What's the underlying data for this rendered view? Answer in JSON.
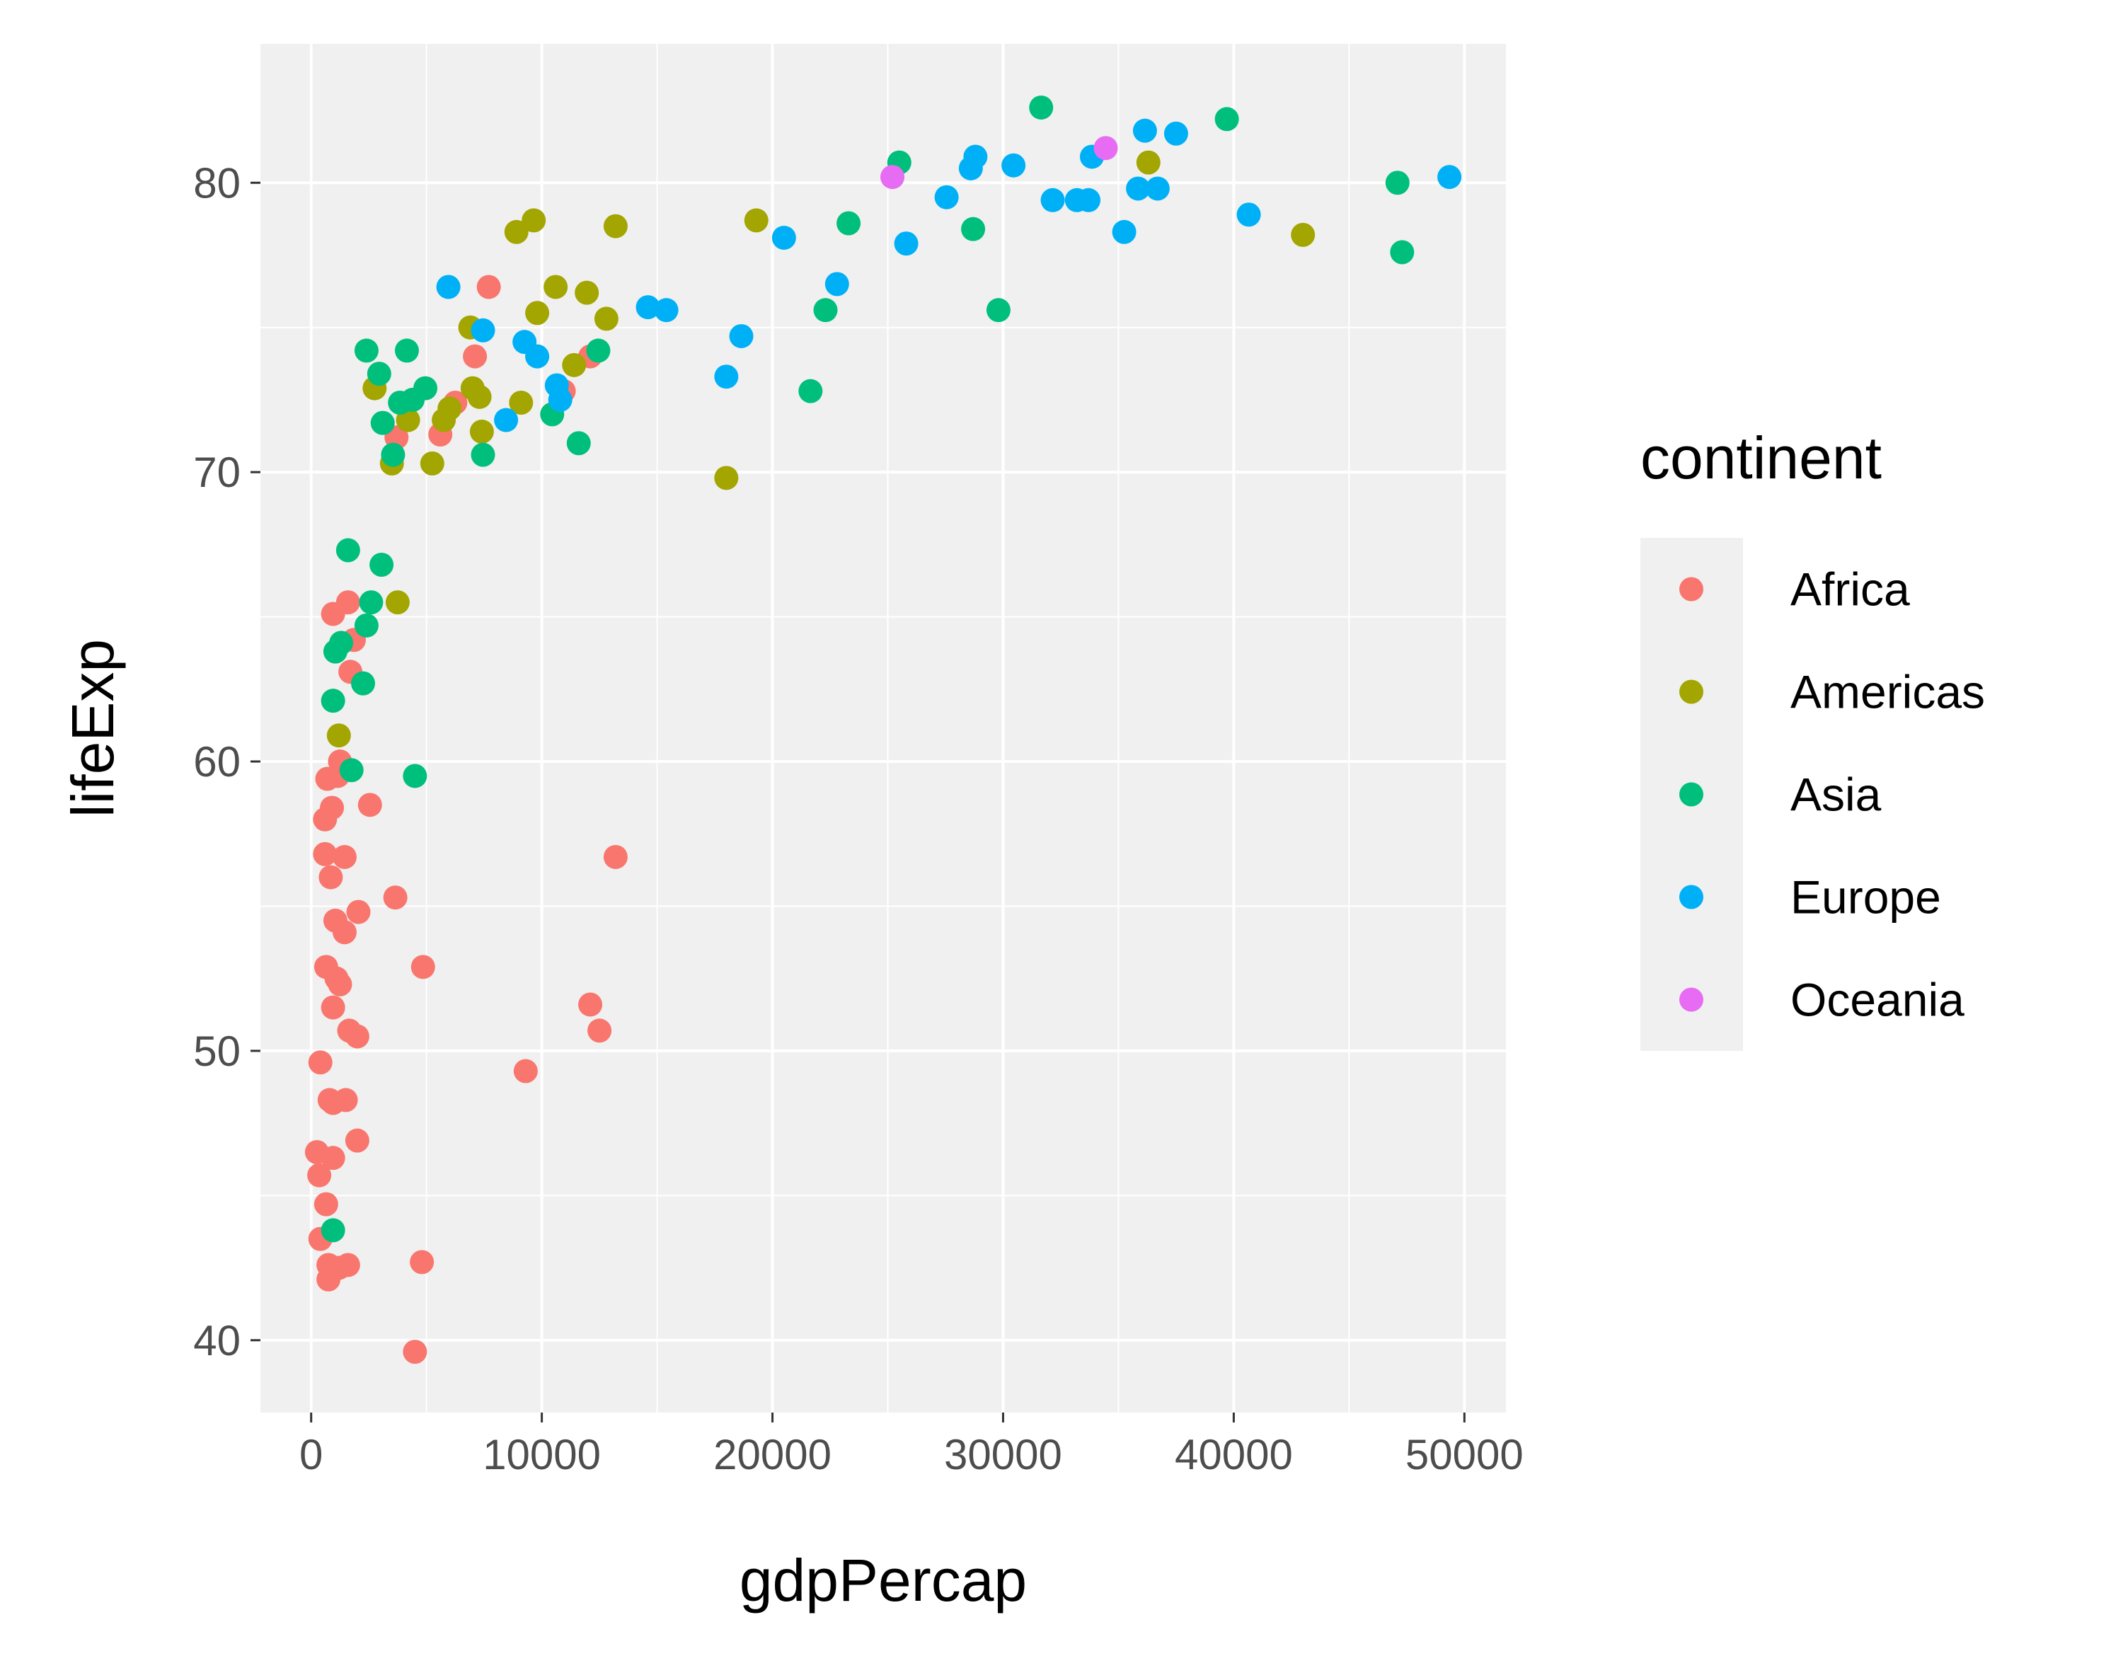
{
  "chart_data": {
    "type": "scatter",
    "xlabel": "gdpPercap",
    "ylabel": "lifeExp",
    "xlim": [
      -2200,
      51800
    ],
    "ylim": [
      37.5,
      84.8
    ],
    "x_ticks": [
      0,
      10000,
      20000,
      30000,
      40000,
      50000
    ],
    "y_ticks": [
      40,
      50,
      60,
      70,
      80
    ],
    "grid": true,
    "legend": {
      "title": "continent",
      "position": "right"
    },
    "series": [
      {
        "name": "Africa",
        "color": "#F8766D",
        "points": [
          [
            7700,
            76.4
          ],
          [
            1600,
            65.5
          ],
          [
            950,
            65.1
          ],
          [
            1850,
            64.2
          ],
          [
            1700,
            63.1
          ],
          [
            1250,
            60.0
          ],
          [
            1150,
            59.5
          ],
          [
            700,
            59.4
          ],
          [
            900,
            58.4
          ],
          [
            600,
            58.0
          ],
          [
            2550,
            58.5
          ],
          [
            600,
            56.8
          ],
          [
            1450,
            56.7
          ],
          [
            13200,
            56.7
          ],
          [
            850,
            56.0
          ],
          [
            3650,
            55.3
          ],
          [
            2050,
            54.8
          ],
          [
            1050,
            54.5
          ],
          [
            1450,
            54.1
          ],
          [
            650,
            52.9
          ],
          [
            4850,
            52.9
          ],
          [
            1100,
            52.5
          ],
          [
            1250,
            52.3
          ],
          [
            950,
            51.5
          ],
          [
            12100,
            51.6
          ],
          [
            12500,
            50.7
          ],
          [
            1650,
            50.7
          ],
          [
            2000,
            50.5
          ],
          [
            400,
            49.6
          ],
          [
            9300,
            49.3
          ],
          [
            800,
            48.3
          ],
          [
            1500,
            48.3
          ],
          [
            950,
            48.2
          ],
          [
            2000,
            46.9
          ],
          [
            250,
            46.5
          ],
          [
            950,
            46.3
          ],
          [
            350,
            45.7
          ],
          [
            650,
            44.7
          ],
          [
            400,
            43.5
          ],
          [
            750,
            42.6
          ],
          [
            1200,
            42.5
          ],
          [
            1600,
            42.6
          ],
          [
            750,
            42.1
          ],
          [
            1150,
            42.5
          ],
          [
            4800,
            42.7
          ],
          [
            4500,
            39.6
          ],
          [
            7100,
            74.0
          ],
          [
            12100,
            74.0
          ],
          [
            10950,
            72.8
          ],
          [
            3700,
            71.2
          ],
          [
            5600,
            71.3
          ],
          [
            6250,
            72.4
          ]
        ]
      },
      {
        "name": "Americas",
        "color": "#A3A500",
        "points": [
          [
            36300,
            80.7
          ],
          [
            43000,
            78.2
          ],
          [
            9650,
            78.7
          ],
          [
            8900,
            78.3
          ],
          [
            13200,
            78.5
          ],
          [
            19300,
            78.7
          ],
          [
            10600,
            76.4
          ],
          [
            11950,
            76.2
          ],
          [
            9800,
            75.5
          ],
          [
            12800,
            75.3
          ],
          [
            6900,
            75.0
          ],
          [
            11400,
            73.7
          ],
          [
            2750,
            72.9
          ],
          [
            7000,
            72.9
          ],
          [
            7300,
            72.6
          ],
          [
            6000,
            72.2
          ],
          [
            5750,
            71.8
          ],
          [
            4200,
            71.8
          ],
          [
            9100,
            72.4
          ],
          [
            7400,
            71.4
          ],
          [
            18000,
            69.8
          ],
          [
            3500,
            70.3
          ],
          [
            5250,
            70.3
          ],
          [
            3750,
            65.5
          ],
          [
            1200,
            60.9
          ]
        ]
      },
      {
        "name": "Asia",
        "color": "#00BF7D",
        "points": [
          [
            31650,
            82.6
          ],
          [
            39700,
            82.2
          ],
          [
            25500,
            80.7
          ],
          [
            47100,
            80.0
          ],
          [
            23300,
            78.6
          ],
          [
            28700,
            78.4
          ],
          [
            47300,
            77.6
          ],
          [
            22300,
            75.6
          ],
          [
            29800,
            75.6
          ],
          [
            2400,
            74.2
          ],
          [
            4150,
            74.2
          ],
          [
            12450,
            74.2
          ],
          [
            2950,
            73.4
          ],
          [
            4950,
            72.9
          ],
          [
            4400,
            72.5
          ],
          [
            3850,
            72.4
          ],
          [
            21650,
            72.8
          ],
          [
            3100,
            71.7
          ],
          [
            10450,
            72.0
          ],
          [
            11600,
            71.0
          ],
          [
            3550,
            70.6
          ],
          [
            7450,
            70.6
          ],
          [
            1600,
            67.3
          ],
          [
            3050,
            66.8
          ],
          [
            2600,
            65.5
          ],
          [
            2400,
            64.7
          ],
          [
            1300,
            64.1
          ],
          [
            1050,
            63.8
          ],
          [
            2250,
            62.7
          ],
          [
            950,
            62.1
          ],
          [
            1750,
            59.7
          ],
          [
            4500,
            59.5
          ],
          [
            950,
            43.8
          ]
        ]
      },
      {
        "name": "Europe",
        "color": "#00B0F6",
        "points": [
          [
            36150,
            81.8
          ],
          [
            37500,
            81.7
          ],
          [
            28800,
            80.9
          ],
          [
            33850,
            80.9
          ],
          [
            30450,
            80.6
          ],
          [
            28600,
            80.5
          ],
          [
            49350,
            80.2
          ],
          [
            33200,
            79.4
          ],
          [
            33700,
            79.4
          ],
          [
            32150,
            79.4
          ],
          [
            35850,
            79.8
          ],
          [
            36700,
            79.8
          ],
          [
            27550,
            79.5
          ],
          [
            40650,
            78.9
          ],
          [
            35250,
            78.3
          ],
          [
            20500,
            78.1
          ],
          [
            25800,
            77.9
          ],
          [
            22800,
            76.5
          ],
          [
            5950,
            76.4
          ],
          [
            14600,
            75.7
          ],
          [
            15400,
            75.6
          ],
          [
            18650,
            74.7
          ],
          [
            7450,
            74.9
          ],
          [
            9250,
            74.5
          ],
          [
            9800,
            74.0
          ],
          [
            10650,
            73.0
          ],
          [
            18000,
            73.3
          ],
          [
            8450,
            71.8
          ],
          [
            10800,
            72.5
          ]
        ]
      },
      {
        "name": "Oceania",
        "color": "#E76BF3",
        "points": [
          [
            34450,
            81.2
          ],
          [
            25200,
            80.2
          ]
        ]
      }
    ]
  }
}
